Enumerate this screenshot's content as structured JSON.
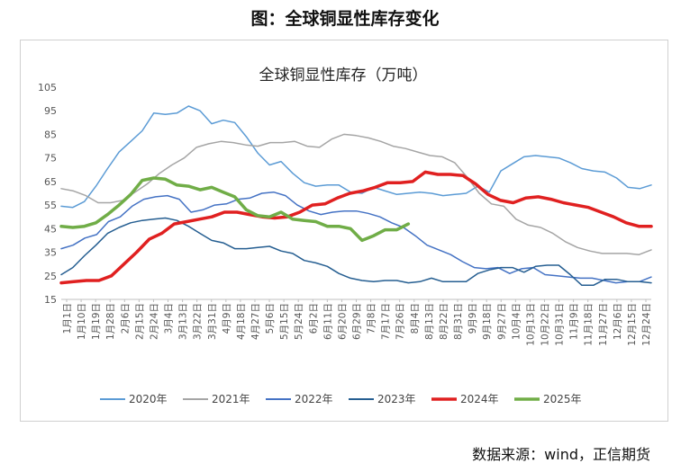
{
  "figure_title": "图：全球铜显性库存变化",
  "source": "数据来源：wind，正信期货",
  "chart_data": {
    "type": "line",
    "title": "全球铜显性库存（万吨）",
    "xlabel": "",
    "ylabel": "",
    "ylim": [
      15,
      105
    ],
    "yticks": [
      15,
      25,
      35,
      45,
      55,
      65,
      75,
      85,
      95,
      105
    ],
    "x_tick_labels": [
      "1月1日",
      "1月10日",
      "1月19日",
      "1月28日",
      "2月6日",
      "2月15日",
      "2月24日",
      "3月4日",
      "3月13日",
      "3月22日",
      "3月31日",
      "4月9日",
      "4月18日",
      "4月27日",
      "5月6日",
      "5月15日",
      "5月24日",
      "6月2日",
      "6月11日",
      "6月20日",
      "6月29日",
      "7月8日",
      "7月17日",
      "7月26日",
      "8月4日",
      "8月13日",
      "8月22日",
      "8月31日",
      "9月9日",
      "9月18日",
      "9月27日",
      "10月4日",
      "10月13日",
      "10月22日",
      "10月31日",
      "11月9日",
      "11月18日",
      "11月27日",
      "12月6日",
      "12月15日",
      "12月24日"
    ],
    "grid": false,
    "legend_position": "bottom",
    "series": [
      {
        "name": "2020年",
        "color": "#5b9bd5",
        "width": 1.5,
        "values": [
          54.5,
          54,
          56.5,
          63,
          70.5,
          77.5,
          82,
          86.5,
          94,
          93.5,
          94,
          97,
          95,
          89.5,
          91,
          90,
          84,
          77,
          72,
          73.5,
          68.5,
          64.5,
          63,
          63.5,
          63.5,
          60.5,
          60,
          62.5,
          61,
          59.5,
          60,
          60.5,
          60,
          59,
          59.5,
          60,
          63,
          60.5,
          69.5,
          72.5,
          75.5,
          76,
          75.5,
          75,
          73,
          70.5,
          69.5,
          69,
          66.5,
          62.5,
          62,
          63.5
        ]
      },
      {
        "name": "2021年",
        "color": "#a5a5a5",
        "width": 1.5,
        "values": [
          62,
          61,
          59,
          56,
          56,
          57,
          60.5,
          64,
          68.5,
          72,
          75,
          79.5,
          81,
          82,
          81.5,
          80.5,
          80,
          81.5,
          81.5,
          82,
          80,
          79.5,
          83,
          85,
          84.5,
          83.5,
          82,
          80,
          79,
          77.5,
          76,
          75.5,
          73,
          67,
          60,
          55.5,
          54.5,
          49,
          46.5,
          45.5,
          43,
          39.5,
          37,
          35.5,
          34.5,
          34.5,
          34.5,
          34,
          36
        ]
      },
      {
        "name": "2022年",
        "color": "#4472c4",
        "width": 1.5,
        "values": [
          36.5,
          38,
          41,
          42.5,
          48,
          50,
          54.5,
          57.5,
          58.5,
          59,
          57.5,
          52,
          53,
          55,
          55.5,
          57.5,
          58,
          60,
          60.5,
          59,
          55,
          52.5,
          51,
          52,
          52.5,
          52.5,
          51.5,
          50,
          47.5,
          45.5,
          42,
          38,
          36,
          34,
          31,
          28.5,
          28,
          28.5,
          26,
          28,
          28.5,
          25.5,
          25,
          24.5,
          24,
          24,
          23,
          22,
          22.5,
          22.5,
          24.5
        ]
      },
      {
        "name": "2023年",
        "color": "#255e91",
        "width": 1.5,
        "values": [
          25.5,
          28.5,
          33.5,
          38,
          43,
          45.5,
          47.5,
          48.5,
          49,
          49.5,
          48.5,
          46,
          43,
          40,
          39,
          36.5,
          36.5,
          37,
          37.5,
          35.5,
          34.5,
          31.5,
          30.5,
          29,
          26,
          24,
          23,
          22.5,
          23,
          23,
          22,
          22.5,
          24,
          22.5,
          22.5,
          22.5,
          26,
          27.5,
          28.5,
          28.5,
          26.5,
          29,
          29.5,
          29.5,
          25.5,
          21,
          21,
          23.5,
          23.5,
          22.5,
          22.5,
          22
        ]
      },
      {
        "name": "2024年",
        "color": "#e02020",
        "width": 3.5,
        "values": [
          22,
          22.5,
          23,
          23,
          25,
          30,
          35,
          40.5,
          43,
          47,
          48,
          49,
          50,
          52,
          52,
          51,
          50,
          49.5,
          50,
          52,
          55,
          55.5,
          58,
          60,
          61,
          62.5,
          64.5,
          64.5,
          65,
          69,
          68,
          68,
          67.5,
          64,
          59.5,
          57,
          56,
          58,
          58.5,
          57.5,
          56,
          55,
          54,
          52,
          50,
          47.5,
          46,
          46
        ]
      },
      {
        "name": "2025年",
        "color": "#70ad47",
        "width": 3.5,
        "values": [
          46,
          45.5,
          46,
          47.5,
          51,
          55,
          59.5,
          65.5,
          66.5,
          66,
          63.5,
          63,
          61.5,
          62.5,
          60.5,
          58.5,
          53,
          50.5,
          50,
          52,
          49,
          48.5,
          48,
          46,
          46,
          45,
          40,
          42,
          44.5,
          44.5,
          47
        ]
      }
    ]
  }
}
